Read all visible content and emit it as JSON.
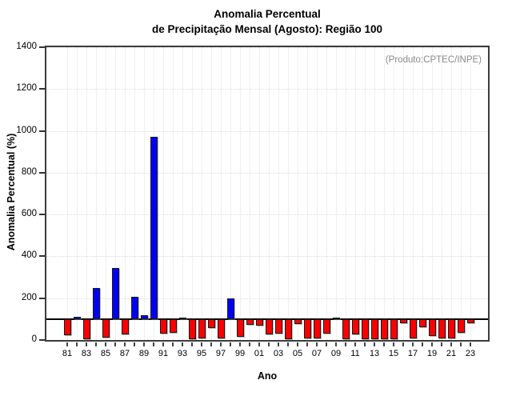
{
  "title": {
    "line1": "Anomalia Percentual",
    "line2": "de Precipitação Mensal (Agosto): Região 100"
  },
  "annotation": "(Produto:CPTEC/INPE)",
  "axes": {
    "y_label": "Anomalia Percentual (%)",
    "x_label": "Ano",
    "y_ticks": [
      "0",
      "200",
      "400",
      "600",
      "800",
      "1000",
      "1200",
      "1400"
    ],
    "x_tick_labels": [
      "81",
      "83",
      "85",
      "87",
      "89",
      "91",
      "93",
      "95",
      "97",
      "99",
      "01",
      "03",
      "05",
      "07",
      "09",
      "11",
      "13",
      "15",
      "17",
      "19",
      "21",
      "23"
    ]
  },
  "chart_data": {
    "type": "bar",
    "title": "Anomalia Percentual de Precipitação Mensal (Agosto): Região 100",
    "xlabel": "Ano",
    "ylabel": "Anomalia Percentual (%)",
    "ylim": [
      0,
      1400
    ],
    "y_tick_step": 200,
    "baseline": 100,
    "grid": "dotted",
    "legend_position": "none",
    "bar_color_above_baseline": "#0000F5",
    "bar_color_below_baseline": "#FA0000",
    "categories": [
      1981,
      1982,
      1983,
      1984,
      1985,
      1986,
      1987,
      1988,
      1989,
      1990,
      1991,
      1992,
      1993,
      1994,
      1995,
      1996,
      1997,
      1998,
      1999,
      2000,
      2001,
      2002,
      2003,
      2004,
      2005,
      2006,
      2007,
      2008,
      2009,
      2010,
      2011,
      2012,
      2013,
      2014,
      2015,
      2016,
      2017,
      2018,
      2019,
      2020,
      2021,
      2022,
      2023
    ],
    "values": [
      22,
      112,
      3,
      250,
      13,
      345,
      27,
      207,
      118,
      972,
      30,
      36,
      102,
      5,
      8,
      57,
      8,
      198,
      15,
      74,
      70,
      25,
      30,
      2,
      78,
      6,
      6,
      30,
      107,
      3,
      25,
      3,
      3,
      3,
      3,
      80,
      7,
      62,
      18,
      6,
      6,
      36,
      82
    ]
  }
}
